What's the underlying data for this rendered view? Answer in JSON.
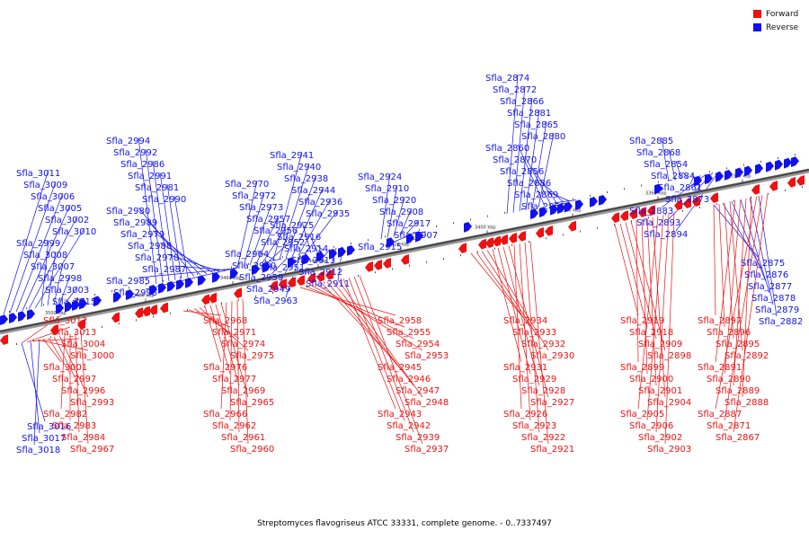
{
  "caption": "Streptomyces flavogriseus ATCC 33331, complete genome. - 0..7337497",
  "legend": [
    {
      "label": "Forward",
      "color": "#ee1111"
    },
    {
      "label": "Reverse",
      "color": "#1111ee"
    }
  ],
  "colors": {
    "forward": "#ee1111",
    "reverse": "#1111ee",
    "axis": "#555555"
  },
  "ticks": [
    "3500 kbp",
    "3480 kbp",
    "3460 kbp",
    "3440 kbp",
    "3420 kbp",
    "3400 kbp",
    "3380 kbp",
    "3360 kbp",
    "3340 kbp"
  ],
  "reverse_top": [
    "Sfla_3011",
    "Sfla_3009",
    "Sfla_3006",
    "Sfla_3005",
    "Sfla_3002",
    "Sfla_3010",
    "Sfla_2999",
    "Sfla_3008",
    "Sfla_3007",
    "Sfla_2998",
    "Sfla_3003",
    "Sfla_3015",
    "Sfla_2994",
    "Sfla_2992",
    "Sfla_2986",
    "Sfla_2991",
    "Sfla_2981",
    "Sfla_2990",
    "Sfla_2980",
    "Sfla_2989",
    "Sfla_2979",
    "Sfla_2988",
    "Sfla_2978",
    "Sfla_2987",
    "Sfla_2985",
    "Sfla_2995",
    "Sfla_2970",
    "Sfla_2972",
    "Sfla_2973",
    "Sfla_2957",
    "Sfla_2956",
    "Sfla_2952",
    "Sfla_2964",
    "Sfla_2950",
    "Sfla_2959",
    "Sfla_2949",
    "Sfla_2963",
    "Sfla_2951",
    "Sfla_2941",
    "Sfla_2940",
    "Sfla_2938",
    "Sfla_2944",
    "Sfla_2936",
    "Sfla_2935",
    "Sfla_2925",
    "Sfla_2916",
    "Sfla_2914",
    "Sfla_2913",
    "Sfla_2912",
    "Sfla_2911",
    "Sfla_2924",
    "Sfla_2910",
    "Sfla_2920",
    "Sfla_2908",
    "Sfla_2917",
    "Sfla_2907",
    "Sfla_2915",
    "Sfla_2874",
    "Sfla_2872",
    "Sfla_2866",
    "Sfla_2881",
    "Sfla_2865",
    "Sfla_2880",
    "Sfla_2860",
    "Sfla_2870",
    "Sfla_2856",
    "Sfla_2886",
    "Sfla_2869",
    "Sfla_2855",
    "Sfla_2885",
    "Sfla_2868",
    "Sfla_2854",
    "Sfla_2884",
    "Sfla_2861",
    "Sfla_2873",
    "Sfla_2883",
    "Sfla_2893",
    "Sfla_2894"
  ],
  "reverse_bottom": [
    "Sfla_3016",
    "Sfla_3017",
    "Sfla_3018",
    "Sfla_2875",
    "Sfla_2876",
    "Sfla_2877",
    "Sfla_2878",
    "Sfla_2879",
    "Sfla_2882"
  ],
  "forward_bottom": [
    "Sfla_3012",
    "Sfla_3013",
    "Sfla_3004",
    "Sfla_3000",
    "Sfla_3001",
    "Sfla_2997",
    "Sfla_2996",
    "Sfla_2993",
    "Sfla_2982",
    "Sfla_2983",
    "Sfla_2984",
    "Sfla_2967",
    "Sfla_2968",
    "Sfla_2971",
    "Sfla_2974",
    "Sfla_2975",
    "Sfla_2976",
    "Sfla_2977",
    "Sfla_2969",
    "Sfla_2965",
    "Sfla_2966",
    "Sfla_2962",
    "Sfla_2961",
    "Sfla_2960",
    "Sfla_2958",
    "Sfla_2955",
    "Sfla_2954",
    "Sfla_2953",
    "Sfla_2945",
    "Sfla_2946",
    "Sfla_2947",
    "Sfla_2948",
    "Sfla_2943",
    "Sfla_2942",
    "Sfla_2939",
    "Sfla_2937",
    "Sfla_2934",
    "Sfla_2933",
    "Sfla_2932",
    "Sfla_2930",
    "Sfla_2931",
    "Sfla_2929",
    "Sfla_2928",
    "Sfla_2927",
    "Sfla_2926",
    "Sfla_2923",
    "Sfla_2922",
    "Sfla_2921",
    "Sfla_2919",
    "Sfla_2918",
    "Sfla_2909",
    "Sfla_2898",
    "Sfla_2899",
    "Sfla_2900",
    "Sfla_2901",
    "Sfla_2904",
    "Sfla_2905",
    "Sfla_2906",
    "Sfla_2902",
    "Sfla_2903",
    "Sfla_2897",
    "Sfla_2896",
    "Sfla_2895",
    "Sfla_2892",
    "Sfla_2891",
    "Sfla_2890",
    "Sfla_2889",
    "Sfla_2888",
    "Sfla_2887",
    "Sfla_2871",
    "Sfla_2867"
  ]
}
